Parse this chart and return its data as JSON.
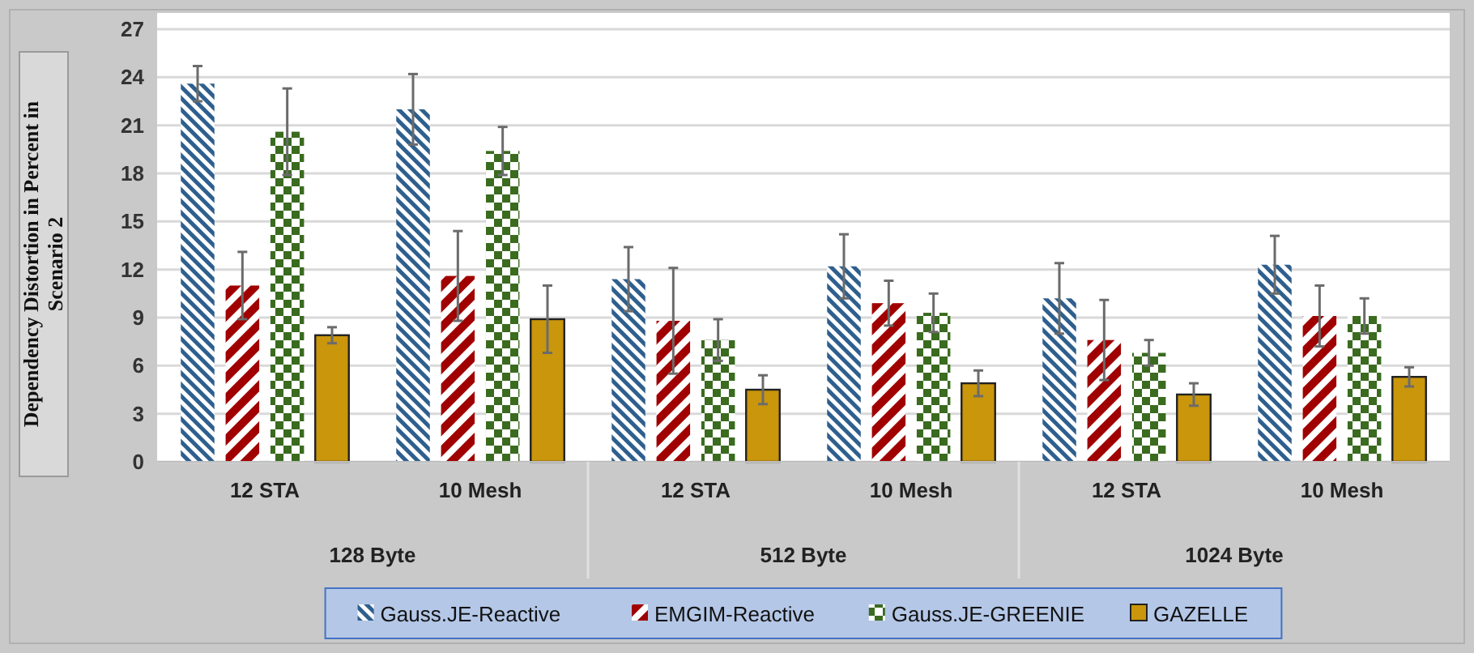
{
  "chart_data": {
    "type": "bar",
    "ylabel": "Dependency Distortion in Percent in Scenario 2",
    "categories": [
      "12 STA",
      "10 Mesh",
      "12 STA",
      "10 Mesh",
      "12 STA",
      "10 Mesh"
    ],
    "annotations": [
      "128 Byte",
      "512 Byte",
      "1024 Byte"
    ],
    "series": [
      {
        "name": "Gauss.JE-Reactive",
        "color": "#2e5f8e",
        "values": [
          23.6,
          22.0,
          11.4,
          12.2,
          10.2,
          12.3
        ],
        "errors": [
          1.1,
          2.2,
          2.0,
          2.0,
          2.2,
          1.8
        ]
      },
      {
        "name": "EMGIM-Reactive",
        "color": "#a00000",
        "values": [
          11.0,
          11.6,
          8.8,
          9.9,
          7.6,
          9.1
        ],
        "errors": [
          2.1,
          2.8,
          3.3,
          1.4,
          2.5,
          1.9
        ]
      },
      {
        "name": "Gauss.JE-GREENIE",
        "color": "#3a6b1f",
        "values": [
          20.6,
          19.4,
          7.6,
          9.3,
          6.8,
          9.1
        ],
        "errors": [
          2.7,
          1.5,
          1.3,
          1.2,
          0.8,
          1.1
        ]
      },
      {
        "name": "GAZELLE",
        "color": "#c9960c",
        "values": [
          7.9,
          8.9,
          4.5,
          4.9,
          4.2,
          5.3
        ],
        "errors": [
          0.5,
          2.1,
          0.9,
          0.8,
          0.7,
          0.6
        ]
      }
    ],
    "ylim": [
      0,
      27
    ],
    "yticks": [
      0,
      3,
      6,
      9,
      12,
      15,
      18,
      21,
      24,
      27
    ],
    "grid": "y",
    "legend": "bottom"
  }
}
